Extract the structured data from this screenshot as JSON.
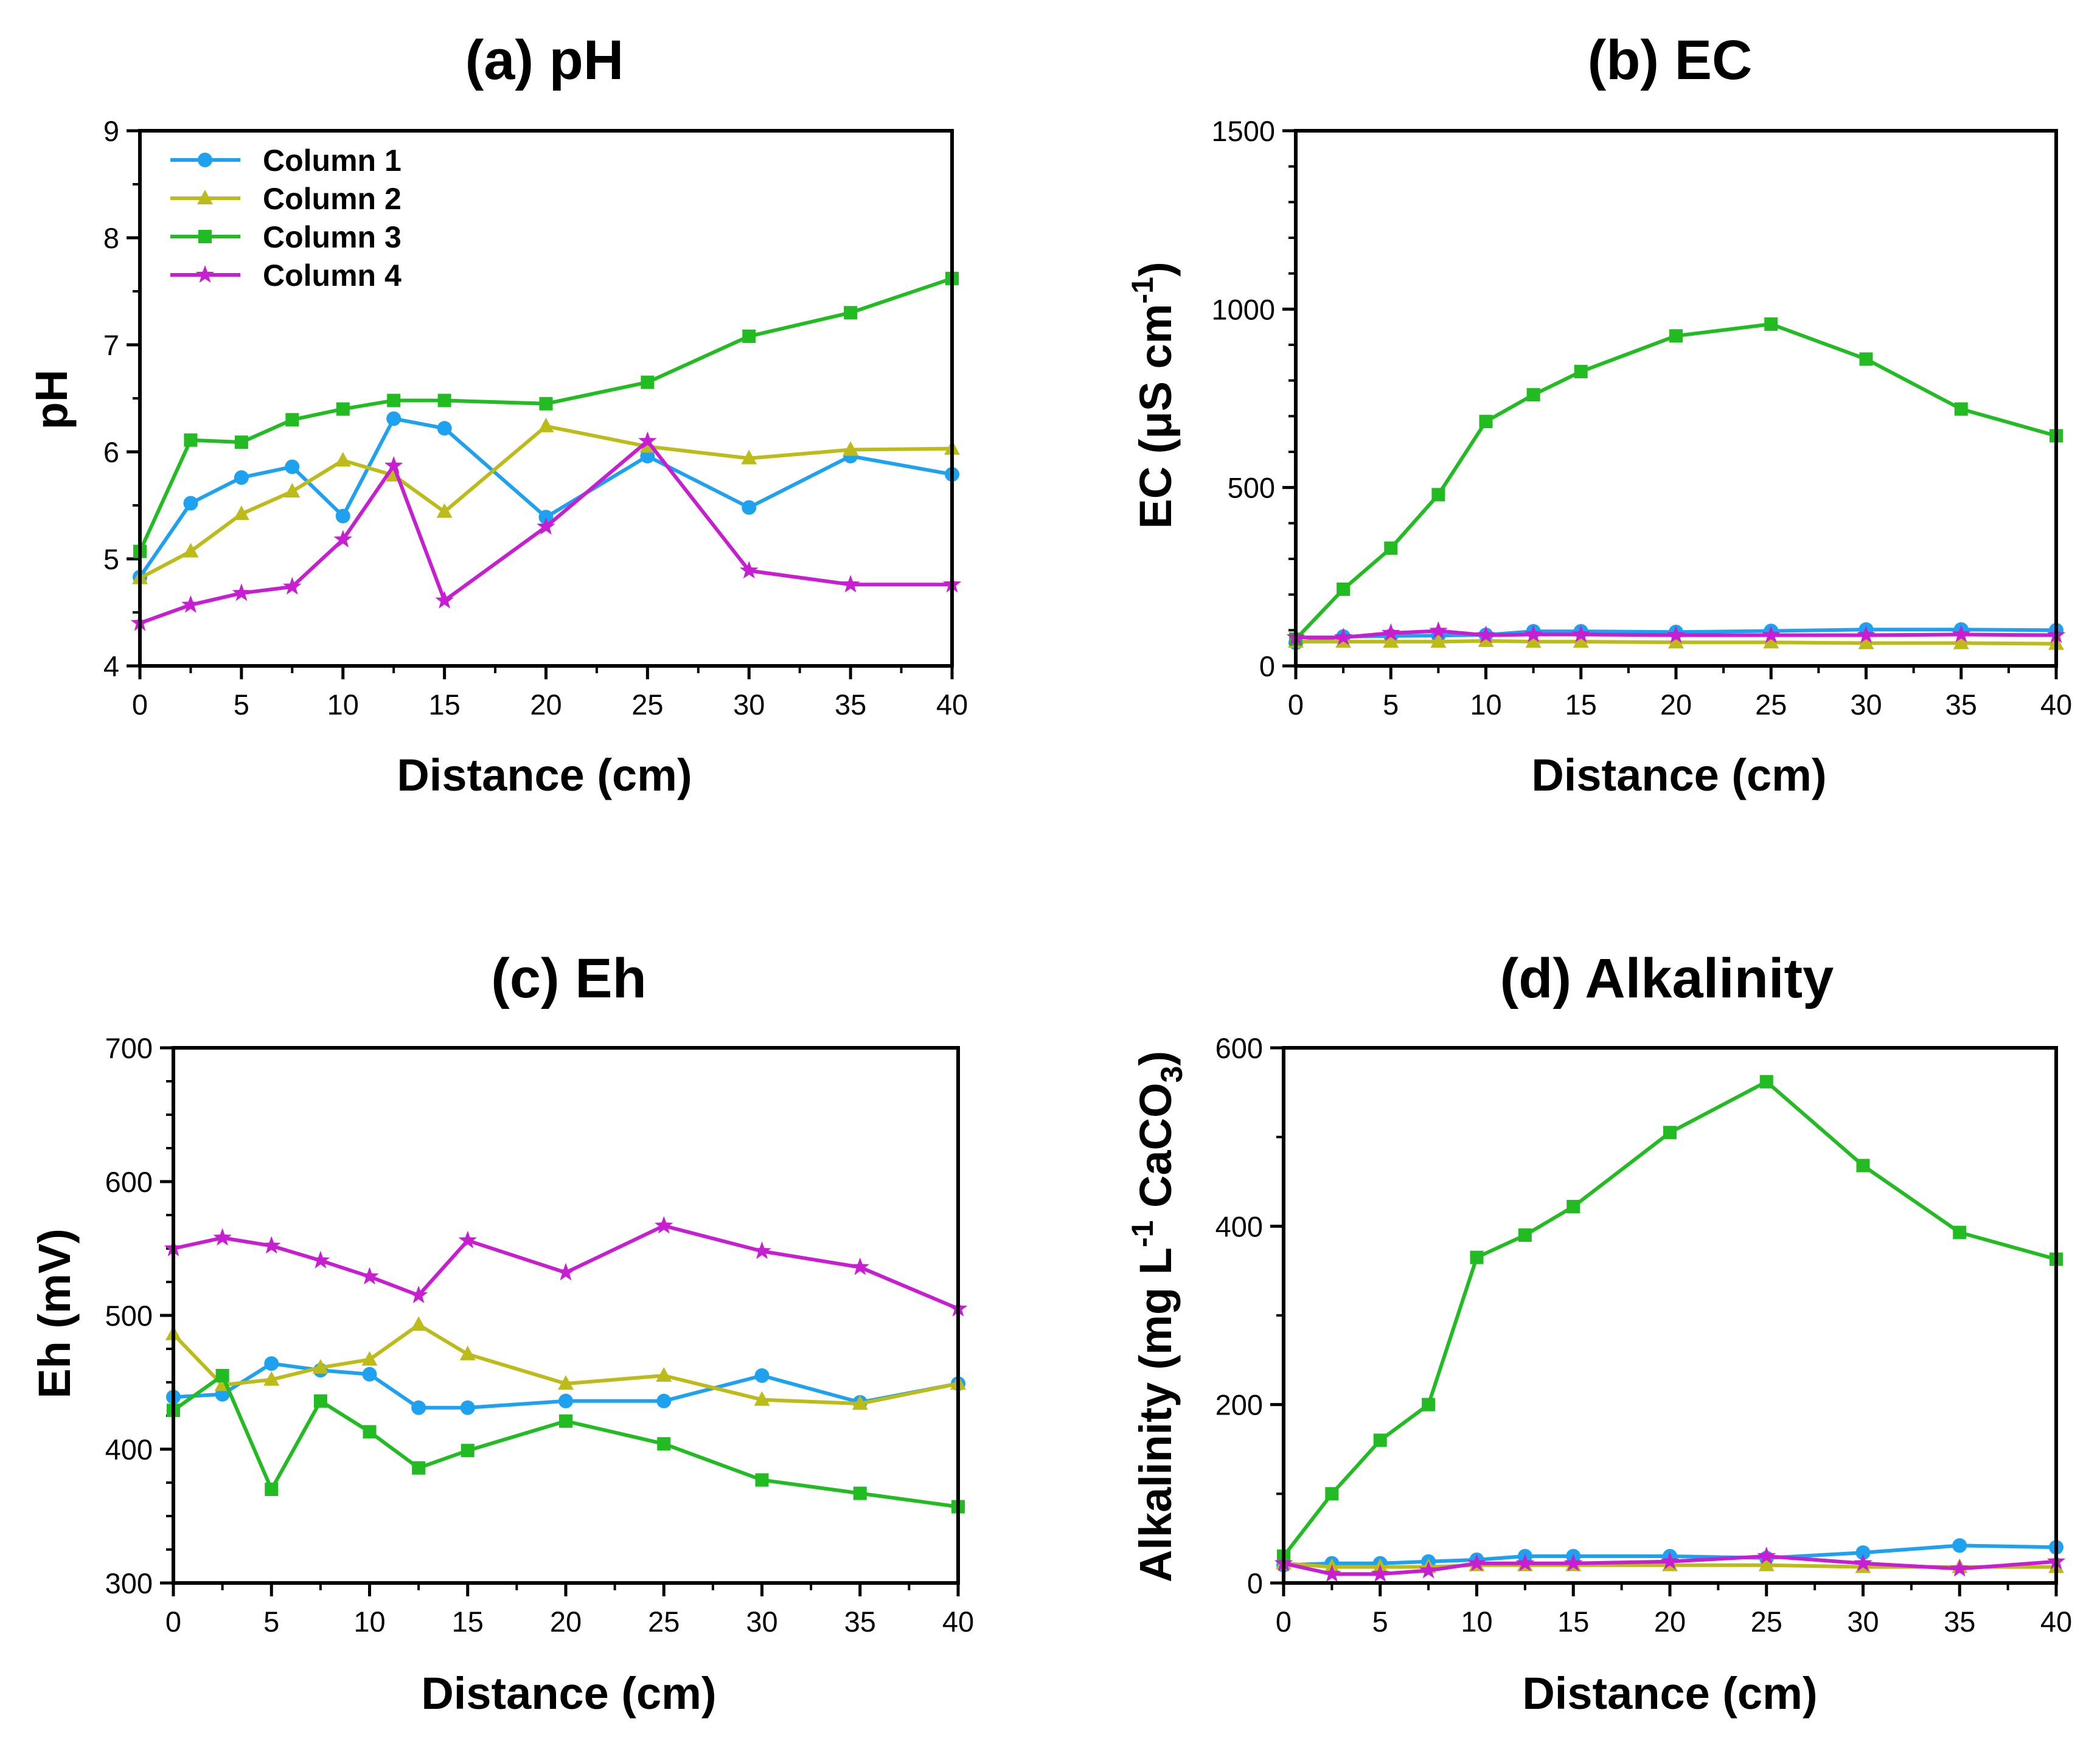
{
  "colors": {
    "column1": "#1ea2f0",
    "column2": "#bcbb1a",
    "column3": "#22bb22",
    "column4": "#c81ed2"
  },
  "legend": [
    {
      "name": "Column 1",
      "marker": "circle"
    },
    {
      "name": "Column 2",
      "marker": "triangle"
    },
    {
      "name": "Column 3",
      "marker": "square"
    },
    {
      "name": "Column 4",
      "marker": "star"
    }
  ],
  "chart_data": [
    {
      "id": "a",
      "type": "line",
      "title": "(a) pH",
      "xlabel": "Distance (cm)",
      "ylabel": "pH",
      "xlim": [
        0,
        40
      ],
      "ylim": [
        4,
        9
      ],
      "xticks": [
        0,
        5,
        10,
        15,
        20,
        25,
        30,
        35,
        40
      ],
      "yticks": [
        4,
        5,
        6,
        7,
        8,
        9
      ],
      "legend_position": "top-left",
      "x": [
        0,
        2.5,
        5,
        7.5,
        10,
        12.5,
        15,
        20,
        25,
        30,
        35,
        40
      ],
      "series": [
        {
          "name": "Column 1",
          "values": [
            4.83,
            5.52,
            5.76,
            5.86,
            5.4,
            6.31,
            6.22,
            5.39,
            5.96,
            5.48,
            5.96,
            5.79
          ]
        },
        {
          "name": "Column 2",
          "values": [
            4.82,
            5.07,
            5.42,
            5.63,
            5.92,
            5.78,
            5.44,
            6.24,
            6.05,
            5.94,
            6.02,
            6.03
          ]
        },
        {
          "name": "Column 3",
          "values": [
            5.07,
            6.11,
            6.09,
            6.3,
            6.4,
            6.48,
            6.48,
            6.45,
            6.65,
            7.08,
            7.3,
            7.62
          ]
        },
        {
          "name": "Column 4",
          "values": [
            4.4,
            4.57,
            4.68,
            4.74,
            5.18,
            5.87,
            4.61,
            5.3,
            6.1,
            4.89,
            4.76,
            4.76
          ]
        }
      ]
    },
    {
      "id": "b",
      "type": "line",
      "title": "(b) EC",
      "xlabel": "Distance (cm)",
      "ylabel_main": "EC (μS cm",
      "ylabel_sup": "-1",
      "ylabel_end": ")",
      "xlim": [
        0,
        40
      ],
      "ylim": [
        0,
        1500
      ],
      "xticks": [
        0,
        5,
        10,
        15,
        20,
        25,
        30,
        35,
        40
      ],
      "yticks": [
        0,
        500,
        1000,
        1500
      ],
      "x": [
        0,
        2.5,
        5,
        7.5,
        10,
        12.5,
        15,
        20,
        25,
        30,
        35,
        40
      ],
      "series": [
        {
          "name": "Column 1",
          "values": [
            65,
            82,
            84,
            85,
            87,
            97,
            97,
            95,
            98,
            102,
            102,
            100
          ]
        },
        {
          "name": "Column 2",
          "values": [
            68,
            68,
            68,
            68,
            70,
            68,
            68,
            66,
            66,
            64,
            64,
            62
          ]
        },
        {
          "name": "Column 3",
          "values": [
            75,
            215,
            330,
            480,
            685,
            760,
            825,
            925,
            958,
            860,
            720,
            645
          ]
        },
        {
          "name": "Column 4",
          "values": [
            80,
            80,
            92,
            98,
            86,
            88,
            88,
            86,
            86,
            86,
            88,
            86
          ]
        }
      ]
    },
    {
      "id": "c",
      "type": "line",
      "title": "(c) Eh",
      "xlabel": "Distance (cm)",
      "ylabel": "Eh (mV)",
      "xlim": [
        0,
        40
      ],
      "ylim": [
        300,
        700
      ],
      "xticks": [
        0,
        5,
        10,
        15,
        20,
        25,
        30,
        35,
        40
      ],
      "yticks": [
        300,
        400,
        500,
        600,
        700
      ],
      "x": [
        0,
        2.5,
        5,
        7.5,
        10,
        12.5,
        15,
        20,
        25,
        30,
        35,
        40
      ],
      "series": [
        {
          "name": "Column 1",
          "values": [
            439,
            441,
            464,
            459,
            456,
            431,
            431,
            436,
            436,
            455,
            435,
            449
          ]
        },
        {
          "name": "Column 2",
          "values": [
            486,
            448,
            452,
            461,
            467,
            493,
            471,
            449,
            455,
            437,
            434,
            449
          ]
        },
        {
          "name": "Column 3",
          "values": [
            429,
            455,
            370,
            436,
            413,
            386,
            399,
            421,
            404,
            377,
            367,
            357
          ]
        },
        {
          "name": "Column 4",
          "values": [
            550,
            558,
            552,
            541,
            529,
            515,
            556,
            532,
            567,
            548,
            536,
            505
          ]
        }
      ]
    },
    {
      "id": "d",
      "type": "line",
      "title": "(d) Alkalinity",
      "xlabel": "Distance (cm)",
      "ylabel_main": "Alkalinity (mg L",
      "ylabel_sup": "-1",
      "ylabel_mid": " CaCO",
      "ylabel_sub": "3",
      "ylabel_end": ")",
      "xlim": [
        0,
        40
      ],
      "ylim": [
        0,
        600
      ],
      "xticks": [
        0,
        5,
        10,
        15,
        20,
        25,
        30,
        35,
        40
      ],
      "yticks": [
        0,
        200,
        400,
        600
      ],
      "x": [
        0,
        2.5,
        5,
        7.5,
        10,
        12.5,
        15,
        20,
        25,
        30,
        35,
        40
      ],
      "series": [
        {
          "name": "Column 1",
          "values": [
            20,
            22,
            22,
            24,
            26,
            30,
            30,
            30,
            28,
            34,
            42,
            40
          ]
        },
        {
          "name": "Column 2",
          "values": [
            22,
            18,
            18,
            18,
            20,
            20,
            20,
            20,
            20,
            18,
            18,
            18
          ]
        },
        {
          "name": "Column 3",
          "values": [
            30,
            100,
            160,
            200,
            365,
            390,
            422,
            505,
            562,
            468,
            393,
            363
          ]
        },
        {
          "name": "Column 4",
          "values": [
            22,
            10,
            10,
            14,
            22,
            22,
            22,
            24,
            30,
            22,
            16,
            24
          ]
        }
      ]
    }
  ]
}
